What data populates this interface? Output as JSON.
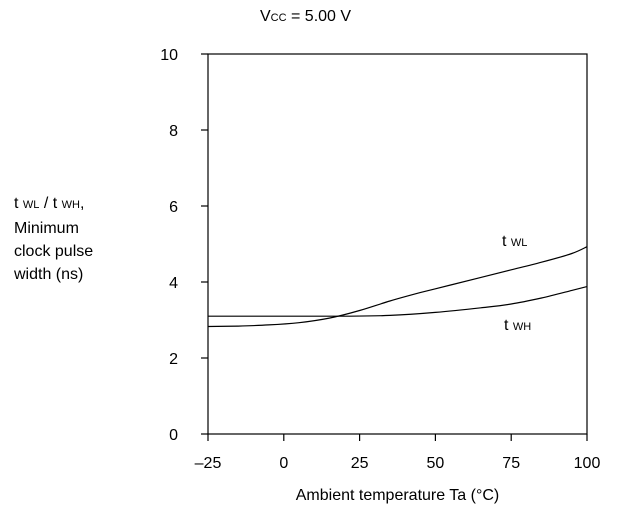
{
  "chart_data": {
    "type": "line",
    "condition": {
      "prefix": "V",
      "sub": "CC",
      "suffix": " = 5.00 V"
    },
    "xlabel": "Ambient temperature Ta (°C)",
    "ylabel": {
      "line1": [
        {
          "t": "t "
        },
        {
          "s": "WL"
        },
        {
          "t": " / t "
        },
        {
          "s": "WH"
        },
        {
          "t": ","
        }
      ],
      "line2": "Minimum",
      "line3": "clock pulse",
      "line4": "width (ns)"
    },
    "xlim": [
      -25,
      100
    ],
    "ylim": [
      0,
      10
    ],
    "xticks": [
      -25,
      0,
      25,
      50,
      75,
      100
    ],
    "xtick_labels": [
      "–25",
      "0",
      "25",
      "50",
      "75",
      "100"
    ],
    "yticks": [
      0,
      2,
      4,
      6,
      8,
      10
    ],
    "ytick_labels": [
      "0",
      "2",
      "4",
      "6",
      "8",
      "10"
    ],
    "grid": false,
    "series": [
      {
        "name": "t WL",
        "label_main": "t ",
        "label_sub": "WL",
        "x": [
          -25,
          -15,
          -5,
          5,
          15,
          25,
          35,
          45,
          55,
          65,
          75,
          85,
          95,
          100
        ],
        "y": [
          2.83,
          2.84,
          2.87,
          2.93,
          3.05,
          3.25,
          3.5,
          3.72,
          3.92,
          4.12,
          4.32,
          4.52,
          4.75,
          4.93
        ]
      },
      {
        "name": "t WH",
        "label_main": "t ",
        "label_sub": "WH",
        "x": [
          -25,
          0,
          20,
          35,
          50,
          65,
          75,
          85,
          95,
          100
        ],
        "y": [
          3.1,
          3.1,
          3.1,
          3.12,
          3.2,
          3.32,
          3.42,
          3.58,
          3.78,
          3.88
        ]
      }
    ]
  }
}
